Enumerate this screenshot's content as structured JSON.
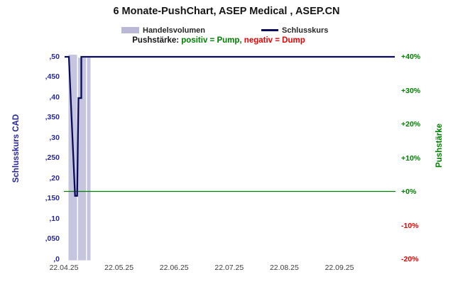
{
  "chart_data": {
    "type": "composite",
    "title": "6 Monate-PushChart, ASEP Medical , ASEP.CN",
    "sub_legend": {
      "prefix": "Pushstärke: ",
      "positive": "positiv = Pump,",
      "negative": " negativ = Dump"
    },
    "x_axis": {
      "ticks": [
        "22.04.25",
        "22.05.25",
        "22.06.25",
        "22.07.25",
        "22.08.25",
        "22.09.25"
      ]
    },
    "y_left": {
      "label": "Schlusskurs CAD",
      "unit": "CAD",
      "ticks": [
        ",50",
        ",450",
        ",40",
        ",350",
        ",30",
        ",250",
        ",20",
        ",150",
        ",10",
        ",050",
        ",0"
      ],
      "tick_values": [
        0.5,
        0.45,
        0.4,
        0.35,
        0.3,
        0.25,
        0.2,
        0.15,
        0.1,
        0.05,
        0.0
      ],
      "range": [
        0.0,
        0.5
      ]
    },
    "y_right": {
      "label": "Pushstärke",
      "ticks": [
        "+40%",
        "+30%",
        "+20%",
        "+10%",
        "+0%",
        "-10%",
        "-20%"
      ],
      "tick_values_pct": [
        40,
        30,
        20,
        10,
        0,
        -10,
        -20
      ],
      "range_pct": [
        -20,
        40
      ],
      "positive_color": "#008000",
      "negative_color": "#ee0000"
    },
    "zero_line": {
      "value_pct": 0,
      "value_cad_equivalent": 0.167,
      "color": "#008000"
    },
    "series": [
      {
        "name": "Handelsvolumen",
        "type": "bar",
        "color": "#c6c5df",
        "bars": [
          {
            "x0": 0.0139,
            "x1": 0.0396,
            "h": 1.0
          },
          {
            "x0": 0.0428,
            "x1": 0.0664,
            "h": 0.985
          },
          {
            "x0": 0.0696,
            "x1": 0.0803,
            "h": 0.985
          }
        ],
        "note": "volume cluster near 22.04.25 - early 05.25, bars reach top of plot"
      },
      {
        "name": "Schlusskurs",
        "type": "line",
        "color": "#0b0b5c",
        "points_x_fraction_cad": [
          [
            0.002,
            0.5
          ],
          [
            0.015,
            0.5
          ],
          [
            0.0336,
            0.156
          ],
          [
            0.04,
            0.156
          ],
          [
            0.0439,
            0.398
          ],
          [
            0.0525,
            0.398
          ],
          [
            0.0525,
            0.5
          ],
          [
            0.998,
            0.5
          ]
        ]
      }
    ]
  }
}
